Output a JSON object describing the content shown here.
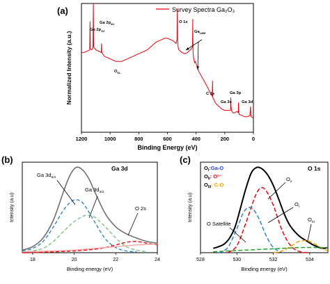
{
  "chart_data": [
    {
      "panel": "(a)",
      "type": "line",
      "legend": "Survey Spectra Ga2O3",
      "legend_display": "Survey Spectra Ga₂O₃",
      "xlabel": "Binding Energy (eV)",
      "ylabel": "Normalized Intensity (a.u.)",
      "xlim": [
        1200,
        0
      ],
      "x_ticks": [
        "1200",
        "1000",
        "800",
        "600",
        "400",
        "200",
        "0"
      ],
      "color": "#e8000b",
      "series": [
        {
          "x": [
            1200,
            1180,
            1160,
            1142,
            1140,
            1138,
            1130,
            1120,
            1117,
            1115,
            1113,
            1100,
            1080,
            1062,
            1060,
            1058,
            1040,
            1020,
            1000,
            980,
            960,
            940,
            920,
            900,
            880,
            860,
            840,
            820,
            800,
            780,
            760,
            740,
            720,
            700,
            680,
            660,
            640,
            620,
            600,
            580,
            560,
            540,
            533,
            531,
            529,
            525,
            520,
            500,
            480,
            460,
            440,
            425,
            423,
            421,
            418,
            415,
            410,
            405,
            400,
            395,
            390,
            380,
            360,
            340,
            320,
            300,
            287,
            285,
            283,
            270,
            260,
            240,
            220,
            200,
            180,
            160,
            158,
            156,
            150,
            140,
            130,
            120,
            110,
            106,
            104,
            102,
            100,
            80,
            60,
            40,
            25,
            20,
            18,
            15,
            0
          ],
          "y": [
            0.62,
            0.62,
            0.63,
            0.64,
            0.86,
            0.65,
            0.64,
            0.65,
            1.0,
            0.67,
            0.66,
            0.64,
            0.63,
            0.62,
            0.69,
            0.62,
            0.59,
            0.58,
            0.57,
            0.56,
            0.55,
            0.55,
            0.55,
            0.56,
            0.57,
            0.58,
            0.59,
            0.6,
            0.61,
            0.62,
            0.63,
            0.64,
            0.66,
            0.68,
            0.7,
            0.71,
            0.72,
            0.73,
            0.73,
            0.72,
            0.71,
            0.69,
            0.72,
            0.96,
            0.72,
            0.66,
            0.64,
            0.62,
            0.61,
            0.62,
            0.64,
            0.66,
            0.88,
            0.62,
            0.58,
            0.56,
            0.54,
            0.55,
            0.53,
            0.52,
            0.5,
            0.47,
            0.43,
            0.39,
            0.35,
            0.3,
            0.28,
            0.4,
            0.27,
            0.24,
            0.22,
            0.2,
            0.18,
            0.17,
            0.17,
            0.17,
            0.27,
            0.2,
            0.16,
            0.15,
            0.15,
            0.16,
            0.16,
            0.15,
            0.23,
            0.16,
            0.14,
            0.13,
            0.12,
            0.12,
            0.13,
            0.2,
            0.13,
            0.12,
            0.11
          ]
        }
      ],
      "annotations": [
        {
          "text": "Ga 2p",
          "sub": "1/2",
          "x": 1142
        },
        {
          "text": "Ga 2p",
          "sub": "3/2",
          "x": 1117
        },
        {
          "text": "O",
          "sub": "KL",
          "x": 960
        },
        {
          "text": "O 1s",
          "x": 531
        },
        {
          "text": "Ga",
          "sub": "LMM",
          "x": 423
        },
        {
          "text": "C 1s",
          "x": 285
        },
        {
          "text": "Ga 3s",
          "x": 160
        },
        {
          "text": "Ga 3p",
          "x": 104
        },
        {
          "text": "Ga 3d",
          "x": 20
        }
      ]
    },
    {
      "panel": "(b)",
      "type": "line",
      "title": "Ga 3d",
      "xlabel": "Binding energy (eV)",
      "ylabel": "Intensity (a.u)",
      "xlim": [
        17.5,
        24
      ],
      "ylim": [
        0,
        1.05
      ],
      "x_ticks": [
        "18",
        "20",
        "22",
        "24"
      ],
      "labels": [
        {
          "text": "Ga 3d",
          "sub": "5/2",
          "color": "#1f3cff"
        },
        {
          "text": "Ga 3d",
          "sub": "3/2",
          "color": "#22a02a"
        },
        {
          "text": "O 2s",
          "color": "#e8000b"
        }
      ],
      "series": [
        {
          "name": "envelope",
          "color": "#6e6e6e",
          "style": "solid",
          "x": [
            17.5,
            18,
            18.5,
            19,
            19.5,
            19.8,
            20.1,
            20.4,
            20.7,
            21,
            21.5,
            22,
            22.5,
            23,
            23.5,
            24
          ],
          "y": [
            0.03,
            0.07,
            0.17,
            0.38,
            0.72,
            0.9,
            0.99,
            0.96,
            0.86,
            0.7,
            0.45,
            0.3,
            0.22,
            0.17,
            0.13,
            0.11
          ]
        },
        {
          "name": "Ga 3d5/2",
          "color": "#2e86c1",
          "style": "dashed",
          "x": [
            17.5,
            18,
            18.5,
            19,
            19.5,
            19.9,
            20.2,
            20.5,
            21,
            21.5,
            22,
            22.5,
            23
          ],
          "y": [
            0.02,
            0.05,
            0.13,
            0.3,
            0.5,
            0.6,
            0.61,
            0.55,
            0.35,
            0.16,
            0.06,
            0.02,
            0.01
          ]
        },
        {
          "name": "Ga 3d3/2",
          "color": "#7ac27f",
          "style": "dashed",
          "x": [
            17.5,
            18,
            18.5,
            19,
            19.5,
            20,
            20.5,
            20.8,
            21,
            21.5,
            22,
            22.5,
            23,
            23.5
          ],
          "y": [
            0.0,
            0.02,
            0.05,
            0.13,
            0.25,
            0.36,
            0.43,
            0.43,
            0.41,
            0.3,
            0.17,
            0.07,
            0.03,
            0.01
          ]
        },
        {
          "name": "O 2s",
          "color": "#e8000b",
          "style": "dashed",
          "x": [
            17.5,
            18,
            19,
            20,
            21,
            21.5,
            22,
            22.5,
            23,
            23.5,
            24
          ],
          "y": [
            0.0,
            0.0,
            0.01,
            0.02,
            0.04,
            0.06,
            0.09,
            0.12,
            0.13,
            0.11,
            0.09
          ]
        },
        {
          "name": "baseline",
          "color": "#f2a2a2",
          "style": "solid",
          "x": [
            17.5,
            19,
            20,
            21,
            22,
            23,
            24
          ],
          "y": [
            0.01,
            0.02,
            0.03,
            0.05,
            0.07,
            0.09,
            0.1
          ]
        }
      ]
    },
    {
      "panel": "(c)",
      "type": "line",
      "title": "O 1s",
      "xlabel": "Binding energy (eV)",
      "ylabel": "Intensity (a.u)",
      "xlim": [
        528,
        535
      ],
      "ylim": [
        0,
        1.05
      ],
      "x_ticks": [
        "528",
        "530",
        "532",
        "534"
      ],
      "legend": [
        {
          "key": "O",
          "sub": "I",
          "text": ":Ga-O",
          "color": "#1f3cff"
        },
        {
          "key": "O",
          "sub": "II",
          "text": ": O²⁻",
          "color": "#e8000b"
        },
        {
          "key": "O",
          "sub": "III",
          "text": ": C-O",
          "color": "#f0a000"
        }
      ],
      "labels": [
        {
          "text": "O",
          "sub": "II"
        },
        {
          "text": "O",
          "sub": "I"
        },
        {
          "text": "O",
          "sub": "III"
        },
        {
          "text": "O Satellite",
          "color": "#22a02a"
        }
      ],
      "series": [
        {
          "name": "envelope",
          "color": "#000000",
          "style": "solid",
          "x": [
            528.7,
            529,
            529.3,
            529.6,
            529.9,
            530.2,
            530.5,
            530.8,
            531.1,
            531.4,
            531.7,
            532,
            532.3,
            532.6,
            532.9,
            533.2,
            533.5,
            533.8,
            534.1,
            534.4,
            534.7,
            535
          ],
          "y": [
            0.05,
            0.07,
            0.1,
            0.17,
            0.3,
            0.52,
            0.75,
            0.93,
            0.99,
            0.97,
            0.9,
            0.78,
            0.62,
            0.45,
            0.32,
            0.24,
            0.18,
            0.14,
            0.1,
            0.07,
            0.05,
            0.06
          ]
        },
        {
          "name": "OII",
          "color": "#e8000b",
          "style": "dashed",
          "x": [
            529.5,
            530,
            530.5,
            531,
            531.3,
            531.6,
            532,
            532.5,
            533,
            533.5,
            534
          ],
          "y": [
            0.0,
            0.08,
            0.35,
            0.65,
            0.75,
            0.72,
            0.55,
            0.25,
            0.07,
            0.01,
            0.0
          ]
        },
        {
          "name": "OI",
          "color": "#2e86c1",
          "style": "dashed",
          "x": [
            529,
            529.5,
            530,
            530.4,
            530.8,
            531.2,
            531.6,
            532,
            532.5
          ],
          "y": [
            0.0,
            0.06,
            0.28,
            0.48,
            0.52,
            0.4,
            0.2,
            0.06,
            0.0
          ]
        },
        {
          "name": "OIII",
          "color": "#f0a000",
          "style": "dashed",
          "x": [
            532,
            532.5,
            533,
            533.4,
            533.8,
            534.2,
            534.6,
            535
          ],
          "y": [
            0.0,
            0.02,
            0.08,
            0.13,
            0.14,
            0.11,
            0.06,
            0.02
          ]
        },
        {
          "name": "O Satellite",
          "color": "#22a02a",
          "style": "dashed",
          "x": [
            528.7,
            529.5,
            530.5,
            531.5,
            532.5,
            533.5,
            534.5,
            535
          ],
          "y": [
            0.01,
            0.02,
            0.03,
            0.04,
            0.05,
            0.06,
            0.06,
            0.06
          ]
        }
      ]
    }
  ]
}
